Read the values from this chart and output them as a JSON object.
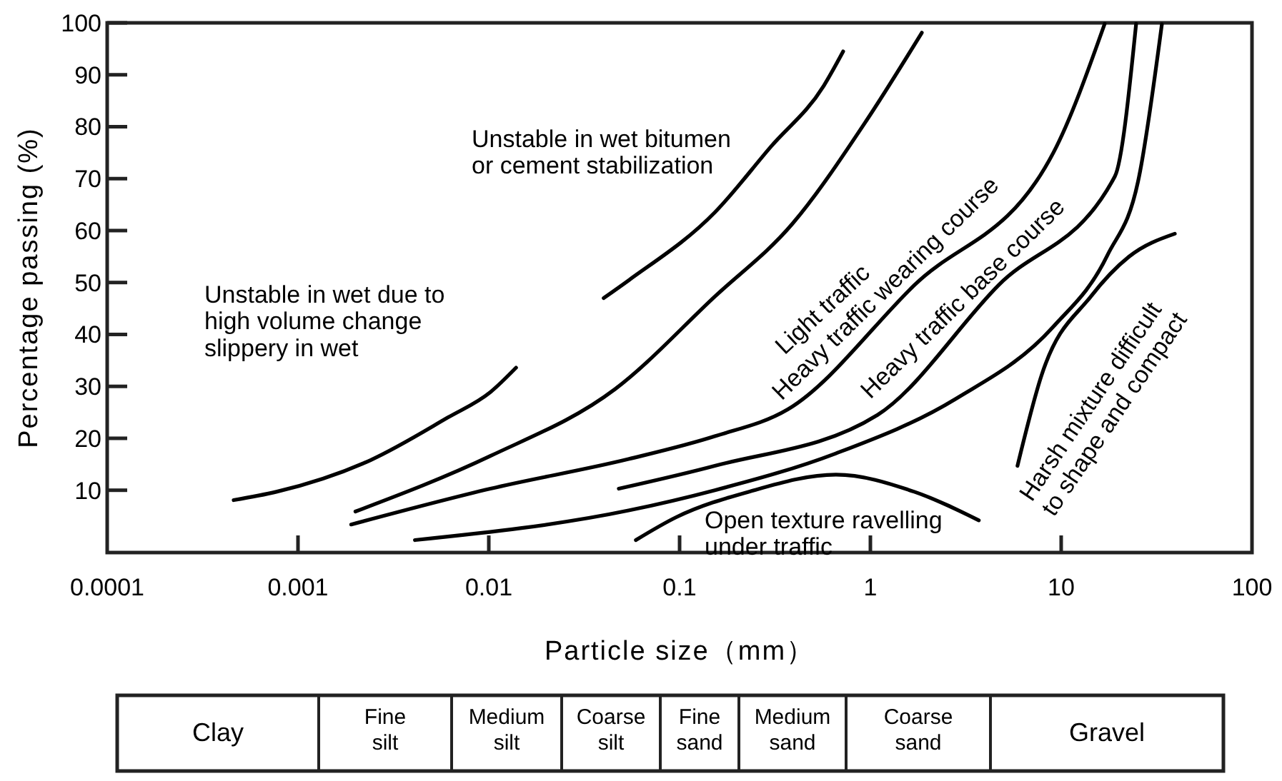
{
  "chart_data": {
    "type": "line",
    "xlabel": "Particle size（mm）",
    "ylabel": "Percentage passing (%)",
    "log": "x",
    "xlim": [
      0.0001,
      100
    ],
    "ylim": [
      -2,
      100
    ],
    "xticks": [
      0.0001,
      0.001,
      0.01,
      0.1,
      1,
      10,
      100
    ],
    "yticks": [
      10,
      20,
      30,
      40,
      50,
      60,
      70,
      80,
      90,
      100
    ],
    "grid": false,
    "marker": "none",
    "line_style": "solid",
    "series": [
      {
        "color": "#000000",
        "x": [
          0.00046,
          0.00077,
          0.0024,
          0.0061,
          0.0102,
          0.0139
        ],
        "values": [
          8.1,
          9.7,
          15.8,
          24.0,
          28.9,
          33.6
        ]
      },
      {
        "color": "#000000",
        "x": [
          0.04,
          0.054,
          0.153,
          0.3,
          0.57,
          0.72
        ],
        "values": [
          47.0,
          50.4,
          63.5,
          76.1,
          87.9,
          94.5
        ]
      },
      {
        "color": "#000000",
        "x": [
          0.002,
          0.0102,
          0.046,
          0.153,
          0.39,
          0.95,
          1.86
        ],
        "values": [
          5.9,
          16.6,
          29.5,
          47.3,
          61.3,
          81.1,
          98.1
        ]
      },
      {
        "color": "#000000",
        "x": [
          0.0019,
          0.0102,
          0.054,
          0.153,
          0.37,
          1.7,
          9.1,
          16.9
        ],
        "values": [
          3.4,
          10.3,
          16.0,
          20.4,
          25.6,
          49.5,
          75.0,
          99.8
        ]
      },
      {
        "color": "#000000",
        "x": [
          0.048,
          0.153,
          1.09,
          4.7,
          19.1,
          24.7
        ],
        "values": [
          10.3,
          14.7,
          24.5,
          49.5,
          70.4,
          99.8
        ]
      },
      {
        "color": "#000000",
        "x": [
          0.0041,
          0.054,
          0.153,
          0.66,
          2.8,
          9.1,
          17.5,
          25.6,
          33.7
        ],
        "values": [
          0.4,
          6.1,
          10.0,
          17.1,
          27.6,
          41.5,
          55.3,
          70.4,
          99.7
        ]
      },
      {
        "color": "#000000",
        "x": [
          0.059,
          0.096,
          0.23,
          0.66,
          1.7,
          3.7
        ],
        "values": [
          0.4,
          4.8,
          9.7,
          13.0,
          9.7,
          4.2
        ]
      },
      {
        "color": "#000000",
        "x": [
          5.9,
          7.9,
          14.3,
          22.7,
          39.4
        ],
        "values": [
          14.7,
          32.2,
          47.3,
          55.0,
          59.4
        ]
      }
    ],
    "annotations": [
      "Unstable in wet due to\nhigh volume change\nslippery in wet",
      "Unstable in wet bitumen\nor cement stabilization",
      "Light  traffic",
      "Heavy traffic wearing course",
      "Heavy traffic base course",
      "Open texture ravelling\nunder traffic",
      "Harsh mixture difficult\nto shape and compact",
      "Clay",
      "Fine\nsilt",
      "Medium\nsilt",
      "Coarse\nsilt",
      "Fine\nsand",
      "Medium\nsand",
      "Coarse\nsand",
      "Gravel"
    ]
  }
}
